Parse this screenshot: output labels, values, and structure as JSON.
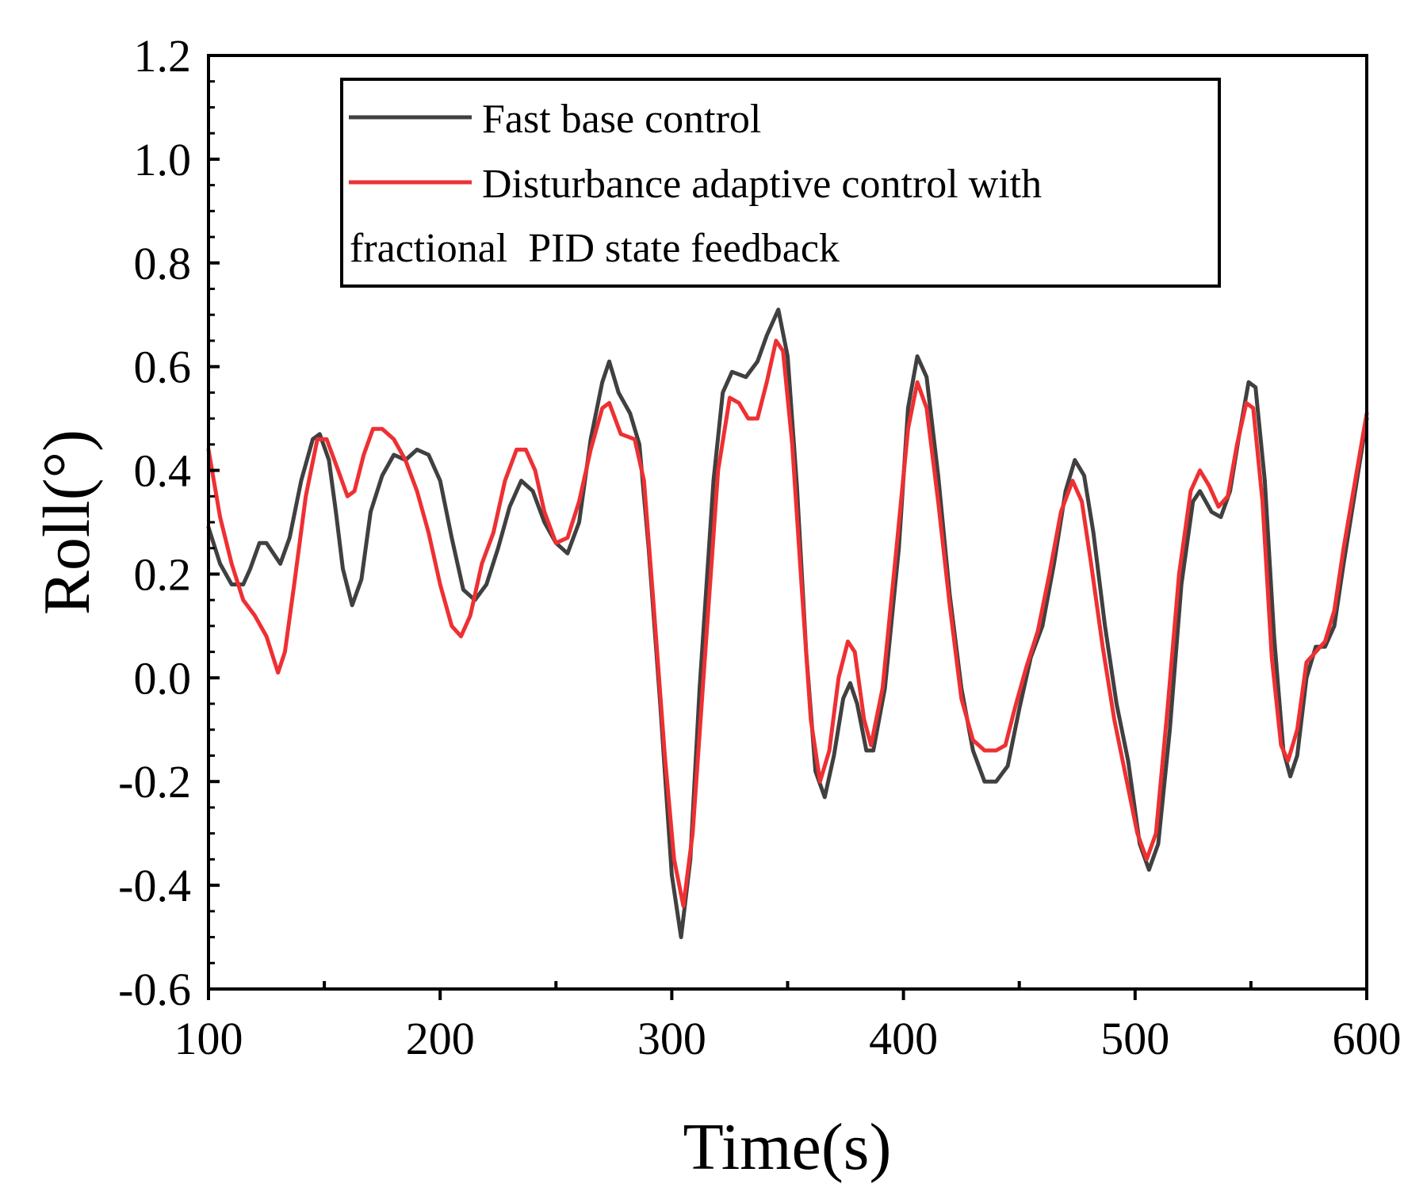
{
  "chart_data": {
    "type": "line",
    "title": "",
    "xlabel": "Time(s)",
    "ylabel": "Roll(°)",
    "xlim": [
      100,
      600
    ],
    "ylim": [
      -0.6,
      1.2
    ],
    "xticks": [
      100,
      200,
      300,
      400,
      500,
      600
    ],
    "xtick_labels": [
      "100",
      "200",
      "300",
      "400",
      "500",
      "600"
    ],
    "yticks": [
      -0.6,
      -0.4,
      -0.2,
      0.0,
      0.2,
      0.4,
      0.6,
      0.8,
      1.0,
      1.2
    ],
    "ytick_labels": [
      "-0.6",
      "-0.4",
      "-0.2",
      "0.0",
      "0.2",
      "0.4",
      "0.6",
      "0.8",
      "1.0",
      "1.2"
    ],
    "grid": false,
    "legend_position": "top",
    "legend": {
      "fast_base": "Fast base control",
      "adaptive_line1": "Disturbance adaptive control with",
      "adaptive_line2": "fractional  PID state feedback"
    },
    "series": [
      {
        "name": "Fast base control",
        "color": "#404040",
        "points": [
          [
            100,
            0.29
          ],
          [
            105,
            0.22
          ],
          [
            110,
            0.18
          ],
          [
            115,
            0.18
          ],
          [
            118,
            0.21
          ],
          [
            122,
            0.26
          ],
          [
            125,
            0.26
          ],
          [
            128,
            0.24
          ],
          [
            131,
            0.22
          ],
          [
            135,
            0.27
          ],
          [
            140,
            0.38
          ],
          [
            145,
            0.46
          ],
          [
            148,
            0.47
          ],
          [
            152,
            0.42
          ],
          [
            155,
            0.32
          ],
          [
            158,
            0.21
          ],
          [
            162,
            0.14
          ],
          [
            166,
            0.19
          ],
          [
            170,
            0.32
          ],
          [
            175,
            0.39
          ],
          [
            180,
            0.43
          ],
          [
            185,
            0.42
          ],
          [
            190,
            0.44
          ],
          [
            195,
            0.43
          ],
          [
            200,
            0.38
          ],
          [
            205,
            0.27
          ],
          [
            210,
            0.17
          ],
          [
            215,
            0.15
          ],
          [
            220,
            0.18
          ],
          [
            225,
            0.25
          ],
          [
            230,
            0.33
          ],
          [
            235,
            0.38
          ],
          [
            240,
            0.36
          ],
          [
            245,
            0.3
          ],
          [
            250,
            0.26
          ],
          [
            255,
            0.24
          ],
          [
            260,
            0.3
          ],
          [
            265,
            0.46
          ],
          [
            270,
            0.57
          ],
          [
            273,
            0.61
          ],
          [
            277,
            0.55
          ],
          [
            282,
            0.51
          ],
          [
            286,
            0.45
          ],
          [
            290,
            0.25
          ],
          [
            295,
            -0.05
          ],
          [
            300,
            -0.38
          ],
          [
            304,
            -0.5
          ],
          [
            308,
            -0.35
          ],
          [
            312,
            -0.02
          ],
          [
            318,
            0.38
          ],
          [
            322,
            0.55
          ],
          [
            326,
            0.59
          ],
          [
            332,
            0.58
          ],
          [
            337,
            0.61
          ],
          [
            341,
            0.66
          ],
          [
            346,
            0.71
          ],
          [
            350,
            0.62
          ],
          [
            354,
            0.37
          ],
          [
            358,
            0.05
          ],
          [
            362,
            -0.18
          ],
          [
            366,
            -0.23
          ],
          [
            370,
            -0.15
          ],
          [
            374,
            -0.04
          ],
          [
            377,
            -0.01
          ],
          [
            380,
            -0.05
          ],
          [
            384,
            -0.14
          ],
          [
            387,
            -0.14
          ],
          [
            392,
            -0.02
          ],
          [
            398,
            0.25
          ],
          [
            402,
            0.52
          ],
          [
            406,
            0.62
          ],
          [
            410,
            0.58
          ],
          [
            415,
            0.39
          ],
          [
            420,
            0.16
          ],
          [
            425,
            -0.02
          ],
          [
            430,
            -0.14
          ],
          [
            435,
            -0.2
          ],
          [
            440,
            -0.2
          ],
          [
            445,
            -0.17
          ],
          [
            450,
            -0.06
          ],
          [
            455,
            0.04
          ],
          [
            460,
            0.1
          ],
          [
            465,
            0.22
          ],
          [
            470,
            0.36
          ],
          [
            474,
            0.42
          ],
          [
            478,
            0.39
          ],
          [
            482,
            0.28
          ],
          [
            487,
            0.1
          ],
          [
            492,
            -0.05
          ],
          [
            497,
            -0.16
          ],
          [
            502,
            -0.32
          ],
          [
            506,
            -0.37
          ],
          [
            510,
            -0.32
          ],
          [
            515,
            -0.1
          ],
          [
            520,
            0.18
          ],
          [
            525,
            0.34
          ],
          [
            528,
            0.36
          ],
          [
            533,
            0.32
          ],
          [
            537,
            0.31
          ],
          [
            541,
            0.36
          ],
          [
            545,
            0.47
          ],
          [
            549,
            0.57
          ],
          [
            552,
            0.56
          ],
          [
            556,
            0.38
          ],
          [
            560,
            0.08
          ],
          [
            564,
            -0.14
          ],
          [
            567,
            -0.19
          ],
          [
            570,
            -0.15
          ],
          [
            574,
            0.0
          ],
          [
            578,
            0.06
          ],
          [
            582,
            0.06
          ],
          [
            586,
            0.1
          ],
          [
            590,
            0.22
          ],
          [
            595,
            0.36
          ],
          [
            600,
            0.5
          ]
        ]
      },
      {
        "name": "Disturbance adaptive control with fractional  PID state feedback",
        "color": "#ee3033",
        "points": [
          [
            100,
            0.44
          ],
          [
            105,
            0.31
          ],
          [
            110,
            0.22
          ],
          [
            115,
            0.15
          ],
          [
            120,
            0.12
          ],
          [
            125,
            0.08
          ],
          [
            130,
            0.01
          ],
          [
            133,
            0.05
          ],
          [
            137,
            0.18
          ],
          [
            142,
            0.35
          ],
          [
            147,
            0.46
          ],
          [
            151,
            0.46
          ],
          [
            156,
            0.4
          ],
          [
            160,
            0.35
          ],
          [
            163,
            0.36
          ],
          [
            167,
            0.43
          ],
          [
            171,
            0.48
          ],
          [
            175,
            0.48
          ],
          [
            180,
            0.46
          ],
          [
            185,
            0.42
          ],
          [
            190,
            0.36
          ],
          [
            195,
            0.28
          ],
          [
            200,
            0.18
          ],
          [
            205,
            0.1
          ],
          [
            209,
            0.08
          ],
          [
            213,
            0.12
          ],
          [
            218,
            0.22
          ],
          [
            223,
            0.28
          ],
          [
            228,
            0.38
          ],
          [
            233,
            0.44
          ],
          [
            237,
            0.44
          ],
          [
            241,
            0.4
          ],
          [
            245,
            0.32
          ],
          [
            250,
            0.26
          ],
          [
            255,
            0.27
          ],
          [
            260,
            0.34
          ],
          [
            265,
            0.44
          ],
          [
            270,
            0.52
          ],
          [
            273,
            0.53
          ],
          [
            278,
            0.47
          ],
          [
            284,
            0.46
          ],
          [
            288,
            0.38
          ],
          [
            292,
            0.15
          ],
          [
            297,
            -0.15
          ],
          [
            301,
            -0.35
          ],
          [
            305,
            -0.44
          ],
          [
            309,
            -0.3
          ],
          [
            314,
            0.02
          ],
          [
            320,
            0.4
          ],
          [
            325,
            0.54
          ],
          [
            329,
            0.53
          ],
          [
            333,
            0.5
          ],
          [
            337,
            0.5
          ],
          [
            341,
            0.57
          ],
          [
            345,
            0.65
          ],
          [
            348,
            0.63
          ],
          [
            352,
            0.45
          ],
          [
            356,
            0.18
          ],
          [
            360,
            -0.08
          ],
          [
            364,
            -0.2
          ],
          [
            368,
            -0.14
          ],
          [
            372,
            0.0
          ],
          [
            376,
            0.07
          ],
          [
            379,
            0.05
          ],
          [
            383,
            -0.08
          ],
          [
            386,
            -0.13
          ],
          [
            391,
            -0.02
          ],
          [
            397,
            0.25
          ],
          [
            402,
            0.48
          ],
          [
            406,
            0.57
          ],
          [
            410,
            0.52
          ],
          [
            415,
            0.34
          ],
          [
            420,
            0.14
          ],
          [
            425,
            -0.04
          ],
          [
            430,
            -0.12
          ],
          [
            435,
            -0.14
          ],
          [
            440,
            -0.14
          ],
          [
            444,
            -0.13
          ],
          [
            448,
            -0.06
          ],
          [
            453,
            0.02
          ],
          [
            458,
            0.09
          ],
          [
            463,
            0.2
          ],
          [
            468,
            0.32
          ],
          [
            473,
            0.38
          ],
          [
            477,
            0.34
          ],
          [
            481,
            0.22
          ],
          [
            486,
            0.06
          ],
          [
            491,
            -0.08
          ],
          [
            496,
            -0.19
          ],
          [
            501,
            -0.3
          ],
          [
            505,
            -0.35
          ],
          [
            509,
            -0.3
          ],
          [
            514,
            -0.06
          ],
          [
            519,
            0.2
          ],
          [
            524,
            0.36
          ],
          [
            528,
            0.4
          ],
          [
            532,
            0.37
          ],
          [
            536,
            0.33
          ],
          [
            540,
            0.35
          ],
          [
            544,
            0.45
          ],
          [
            548,
            0.53
          ],
          [
            551,
            0.52
          ],
          [
            555,
            0.34
          ],
          [
            559,
            0.04
          ],
          [
            563,
            -0.13
          ],
          [
            566,
            -0.16
          ],
          [
            570,
            -0.1
          ],
          [
            574,
            0.03
          ],
          [
            578,
            0.05
          ],
          [
            582,
            0.07
          ],
          [
            586,
            0.13
          ],
          [
            590,
            0.25
          ],
          [
            595,
            0.38
          ],
          [
            600,
            0.51
          ]
        ]
      }
    ]
  }
}
